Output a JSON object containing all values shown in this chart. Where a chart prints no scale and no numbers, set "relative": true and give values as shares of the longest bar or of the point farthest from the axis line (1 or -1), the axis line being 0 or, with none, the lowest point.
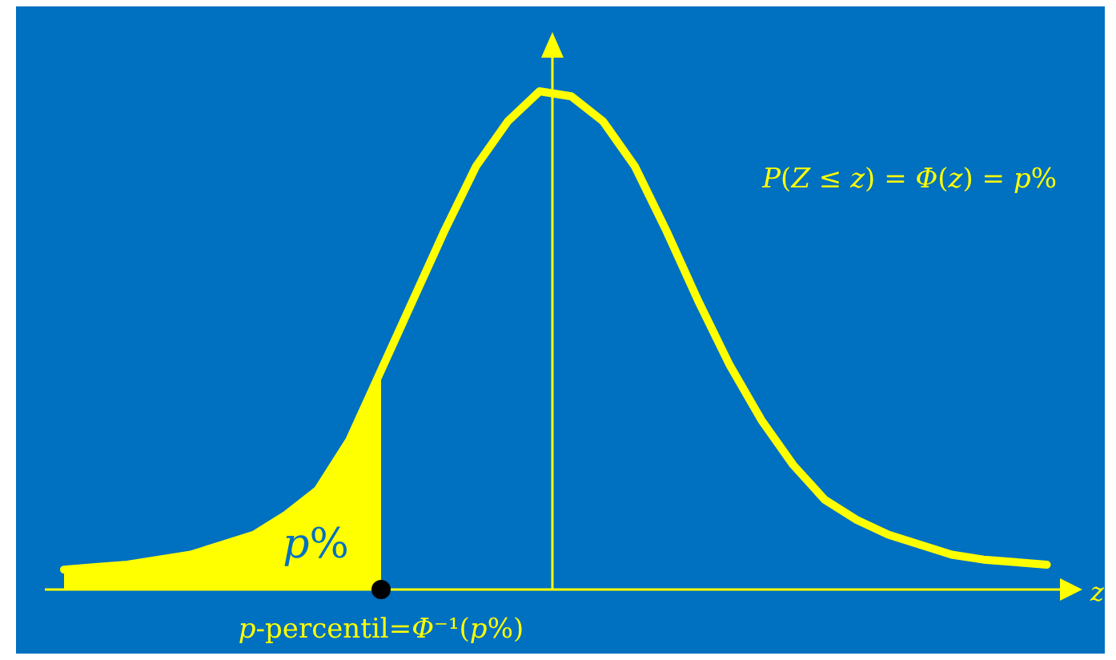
{
  "chart_data": {
    "type": "line",
    "relative": true,
    "xlabel": "z",
    "categories": [
      null,
      null,
      null,
      null,
      null,
      null,
      null,
      null,
      null,
      null,
      null,
      null,
      null,
      null,
      null,
      null,
      null,
      null,
      null,
      null,
      null,
      null,
      null,
      null,
      null,
      null,
      null,
      null,
      null,
      null,
      null,
      null
    ],
    "series": [
      {
        "type": "line",
        "color": "#ffff00",
        "values": [
          0.04,
          0.045,
          0.05,
          0.06,
          0.07,
          0.09,
          0.11,
          0.15,
          0.2,
          0.3,
          0.44,
          0.58,
          0.72,
          0.85,
          0.94,
          1,
          0.99,
          0.94,
          0.85,
          0.72,
          0.58,
          0.45,
          0.34,
          0.25,
          0.18,
          0.14,
          0.11,
          0.09,
          0.07,
          0.06,
          0.055,
          0.05
        ]
      },
      {
        "type": "area",
        "color": "#ffff00",
        "values": [
          0.04,
          0.045,
          0.05,
          0.06,
          0.07,
          0.09,
          0.11,
          0.15,
          0.2,
          0.3,
          0.44,
          null,
          null,
          null,
          null,
          null,
          null,
          null,
          null,
          null,
          null,
          null,
          null,
          null,
          null,
          null,
          null,
          null,
          null,
          null,
          null,
          null
        ]
      }
    ],
    "marker": "none",
    "line_style": "solid",
    "annotations": [
      "p%",
      "P(Z ≤ z) = Φ(z) = p%",
      "p-percentil=Φ⁻¹(p%)"
    ]
  }
}
